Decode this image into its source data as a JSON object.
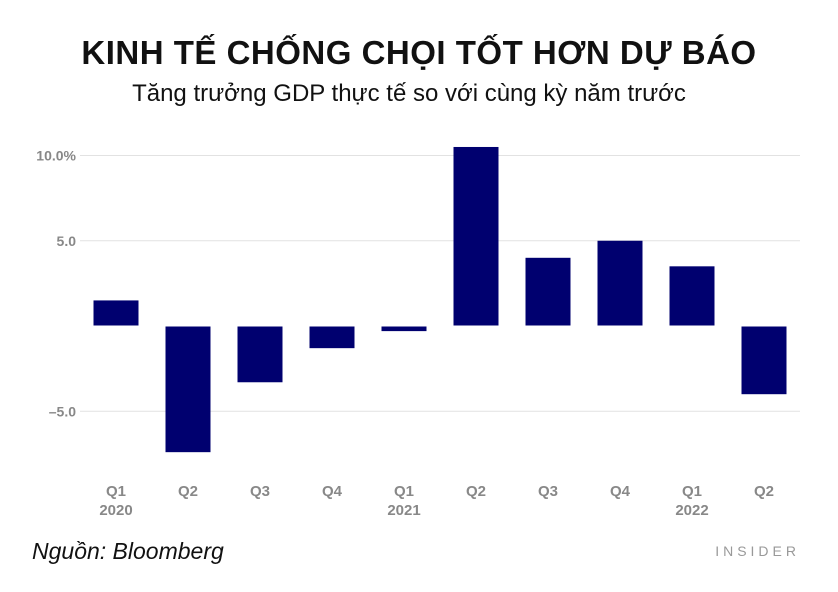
{
  "chart_data": {
    "type": "bar",
    "title": "KINH TẾ CHỐNG CHỌI TỐT HƠN DỰ BÁO",
    "subtitle": "Tăng trưởng GDP thực tế so với cùng kỳ năm trước",
    "categories": [
      "Q1",
      "Q2",
      "Q3",
      "Q4",
      "Q1",
      "Q2",
      "Q3",
      "Q4",
      "Q1",
      "Q2"
    ],
    "years": [
      "2020",
      "",
      "",
      "",
      "2021",
      "",
      "",
      "",
      "2022",
      ""
    ],
    "values": [
      1.5,
      -7.4,
      -3.3,
      -1.3,
      -0.3,
      10.5,
      4.0,
      5.0,
      3.5,
      -4.0
    ],
    "ylim": [
      -7.4,
      10.5
    ],
    "yticks": [
      10,
      5,
      -5
    ],
    "ytick_labels": [
      "10.0%",
      "5.0",
      "–5.0"
    ],
    "bar_color": "#00006f",
    "grid": true,
    "xlabel": "",
    "ylabel": ""
  },
  "footer": {
    "source": "Nguồn: Bloomberg",
    "brand": "INSIDER"
  }
}
